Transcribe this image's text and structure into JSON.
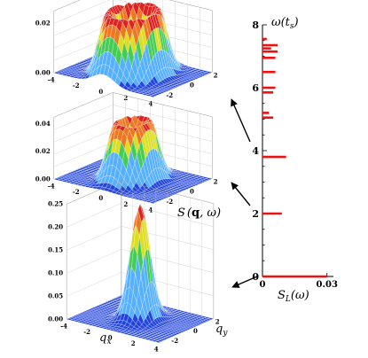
{
  "chart_data": [
    {
      "type": "surface",
      "panel": "top",
      "description_shape": "ring",
      "z_ticks": [
        "0.00",
        "0.02"
      ],
      "x_ticks": [
        "-4",
        "-2",
        "0",
        "2",
        "4"
      ],
      "y_ticks": [
        "-2",
        "0",
        "2"
      ],
      "zlim": [
        0,
        0.025
      ],
      "ring_radius": 1.5,
      "peak": 0.025
    },
    {
      "type": "surface",
      "panel": "middle",
      "description_shape": "ring",
      "z_ticks": [
        "0.00",
        "0.02",
        "0.04"
      ],
      "x_ticks": [
        "-4",
        "-2",
        "0",
        "2",
        "4"
      ],
      "y_ticks": [
        "-2",
        "0",
        "2"
      ],
      "zlim": [
        0,
        0.045
      ],
      "ring_radius": 1.0,
      "peak": 0.042
    },
    {
      "type": "surface",
      "panel": "bottom",
      "description_shape": "peak",
      "zlabel": "S(q, ω)",
      "z_ticks": [
        "0.00",
        "0.05",
        "0.10",
        "0.15",
        "0.20",
        "0.25"
      ],
      "x_ticks": [
        "-4",
        "-2",
        "0",
        "2",
        "4"
      ],
      "y_ticks": [
        "-2",
        "0",
        "2"
      ],
      "xlabel": "q_x",
      "ylabel": "q_y",
      "zlim": [
        0,
        0.25
      ],
      "peak": 0.25
    },
    {
      "type": "bar",
      "orientation": "horizontal",
      "ylabel": "ω(t_s)",
      "xlabel": "S_L(ω)",
      "y_ticks": [
        "0",
        "2",
        "4",
        "6",
        "8"
      ],
      "x_ticks": [
        "0",
        "0.03"
      ],
      "ylim": [
        0,
        8
      ],
      "xlim": [
        0,
        0.033
      ],
      "bars": [
        {
          "y": 0.0,
          "value": 0.03
        },
        {
          "y": 2.0,
          "value": 0.009
        },
        {
          "y": 3.8,
          "value": 0.011
        },
        {
          "y": 5.05,
          "value": 0.005
        },
        {
          "y": 5.2,
          "value": 0.003
        },
        {
          "y": 5.85,
          "value": 0.005
        },
        {
          "y": 6.0,
          "value": 0.006
        },
        {
          "y": 6.5,
          "value": 0.006
        },
        {
          "y": 6.95,
          "value": 0.006
        },
        {
          "y": 7.15,
          "value": 0.007
        },
        {
          "y": 7.25,
          "value": 0.004
        },
        {
          "y": 7.35,
          "value": 0.007
        },
        {
          "y": 7.55,
          "value": 0.002
        }
      ]
    }
  ],
  "labels": {
    "z_axis_label_main": "S",
    "z_axis_label_bold": "q",
    "z_axis_label_rest": ", ω)",
    "qx_label": "q",
    "qx_sub": "x",
    "qy_label": "q",
    "qy_sub": "y",
    "omega_label": "ω(t",
    "omega_sub": "s",
    "omega_close": ")",
    "sl_label": "S",
    "sl_sub": "L",
    "sl_rest": "(ω)"
  },
  "colors": {
    "surface_low": "#2244dd",
    "surface_mid": "#55b0ff",
    "surface_green": "#44cc55",
    "surface_yellow": "#dddd22",
    "surface_orange": "#ee7722",
    "surface_red": "#dd2222",
    "bars": "#ee1111",
    "grid": "#999999"
  }
}
